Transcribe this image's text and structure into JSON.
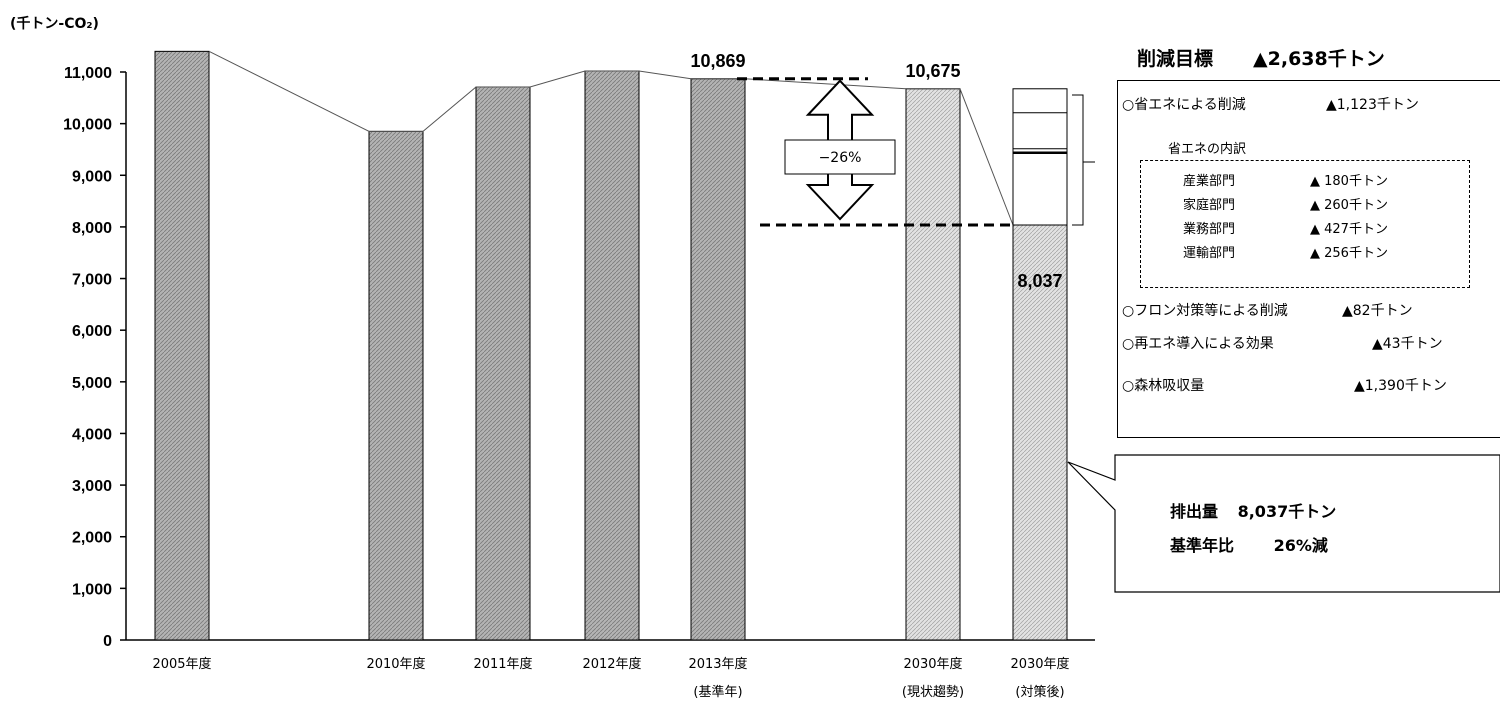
{
  "chart_data": {
    "type": "bar",
    "unit": "(千トン-CO₂)",
    "categories": [
      "2005年度",
      "2010年度",
      "2011年度",
      "2012年度",
      "2013年度",
      "2030年度",
      "2030年度"
    ],
    "category_sublabels": [
      "",
      "",
      "",
      "",
      "(基準年)",
      "(現状趨勢)",
      "(対策後)"
    ],
    "values": [
      11400,
      9850,
      10710,
      11020,
      10869,
      10675,
      8037
    ],
    "ylim": [
      0,
      11000
    ],
    "yticks": [
      0,
      1000,
      2000,
      3000,
      4000,
      5000,
      6000,
      7000,
      8000,
      9000,
      10000,
      11000
    ],
    "ytick_labels": [
      "0",
      "1,000",
      "2,000",
      "3,000",
      "4,000",
      "5,000",
      "6,000",
      "7,000",
      "8,000",
      "9,000",
      "10,000",
      "11,000"
    ],
    "data_labels": [
      {
        "index": 4,
        "text": "10,869"
      },
      {
        "index": 5,
        "text": "10,675"
      },
      {
        "index": 6,
        "text": "8,037"
      }
    ],
    "reduction_label": "−26%",
    "after_bar_top_value": 10675,
    "colors": {
      "bar": "#a8a8a8",
      "bar_light": "#d9d9d9",
      "line": "#555555"
    }
  },
  "panel": {
    "title": "削減目標",
    "target": "▲2,638千トン",
    "items": [
      {
        "label": "○省エネによる削減",
        "value": "▲1,123千トン"
      },
      {
        "label": "○フロン対策等による削減",
        "value": "▲82千トン"
      },
      {
        "label": "○再エネ導入による効果",
        "value": "▲43千トン"
      },
      {
        "label": "○森林吸収量",
        "value": "▲1,390千トン"
      }
    ],
    "breakdown_title": "省エネの内訳",
    "breakdown": [
      {
        "label": "産業部門",
        "value": "▲ 180千トン"
      },
      {
        "label": "家庭部門",
        "value": "▲ 260千トン"
      },
      {
        "label": "業務部門",
        "value": "▲ 427千トン"
      },
      {
        "label": "運輸部門",
        "value": "▲ 256千トン"
      }
    ]
  },
  "callout": {
    "line1_label": "排出量",
    "line1_value": "8,037千トン",
    "line2_label": "基準年比",
    "line2_value": "26%減"
  }
}
